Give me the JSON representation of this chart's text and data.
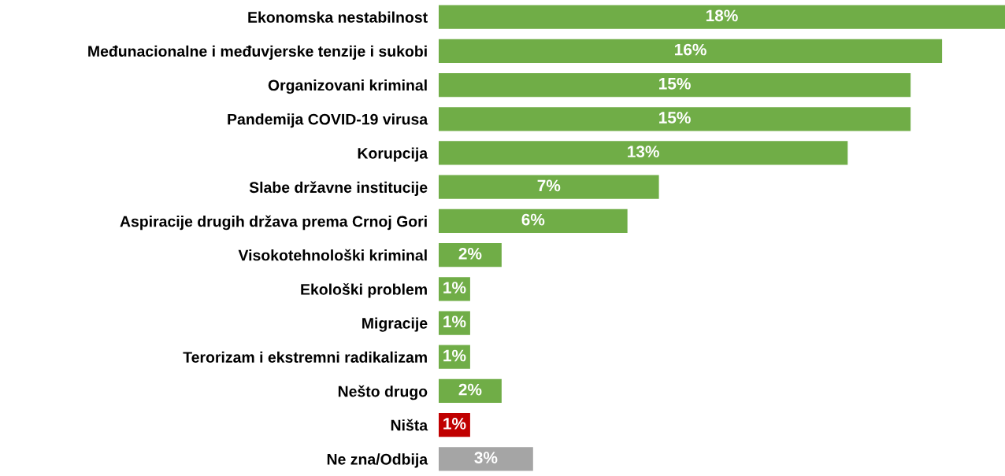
{
  "chart_data": {
    "type": "bar",
    "orientation": "horizontal",
    "categories": [
      "Ekonomska nestabilnost",
      "Međunacionalne i međuvjerske tenzije i sukobi",
      "Organizovani kriminal",
      "Pandemija COVID-19 virusa",
      "Korupcija",
      "Slabe državne institucije",
      "Aspiracije drugih država prema Crnoj Gori",
      "Visokotehnološki kriminal",
      "Ekološki problem",
      "Migracije",
      "Terorizam i ekstremni radikalizam",
      "Nešto drugo",
      "Ništa",
      "Ne zna/Odbija"
    ],
    "values": [
      18,
      16,
      15,
      15,
      13,
      7,
      6,
      2,
      1,
      1,
      1,
      2,
      1,
      3
    ],
    "colors": [
      "#70ad47",
      "#70ad47",
      "#70ad47",
      "#70ad47",
      "#70ad47",
      "#70ad47",
      "#70ad47",
      "#70ad47",
      "#70ad47",
      "#70ad47",
      "#70ad47",
      "#70ad47",
      "#c00000",
      "#a5a5a5"
    ],
    "value_labels": [
      "18%",
      "16%",
      "15%",
      "15%",
      "13%",
      "7%",
      "6%",
      "2%",
      "1%",
      "1%",
      "1%",
      "2%",
      "1%",
      "3%"
    ]
  }
}
